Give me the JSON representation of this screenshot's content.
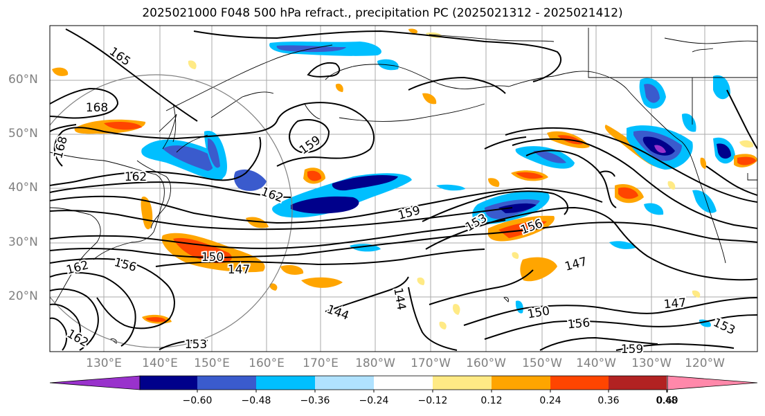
{
  "title": "2025021000 F048 500 hPa refract., precipitation PC (2025021312 - 2025021412)",
  "lat_labels": [
    "60°N",
    "50°N",
    "40°N",
    "30°N",
    "20°N"
  ],
  "lon_labels": [
    "130°E",
    "140°E",
    "150°E",
    "160°E",
    "170°E",
    "180°W",
    "170°W",
    "160°W",
    "150°W",
    "140°W",
    "130°W",
    "120°W"
  ],
  "contour_labels": [
    "165",
    "168",
    "168",
    "162",
    "159",
    "162",
    "159",
    "153",
    "156",
    "150",
    "147",
    "162",
    "156",
    "147",
    "144",
    "144",
    "150",
    "147",
    "156",
    "153",
    "159",
    "153",
    "162"
  ],
  "colorbar": {
    "tick_labels": [
      "−0.60",
      "−0.48",
      "−0.36",
      "−0.24",
      "−0.12",
      "0.12",
      "0.24",
      "0.36",
      "0.48",
      "0.60"
    ],
    "colors": [
      "#9932cc",
      "#00008b",
      "#3a5bcd",
      "#00bfff",
      "#b0e2ff",
      "#ffffff",
      "#ffea85",
      "#ffa500",
      "#ff4500",
      "#b22222",
      "#ff88aa"
    ]
  },
  "colors": {
    "contour": "#000000",
    "coast": "#000000",
    "grid": "#aaaaaa",
    "range_ring": "#808080"
  }
}
